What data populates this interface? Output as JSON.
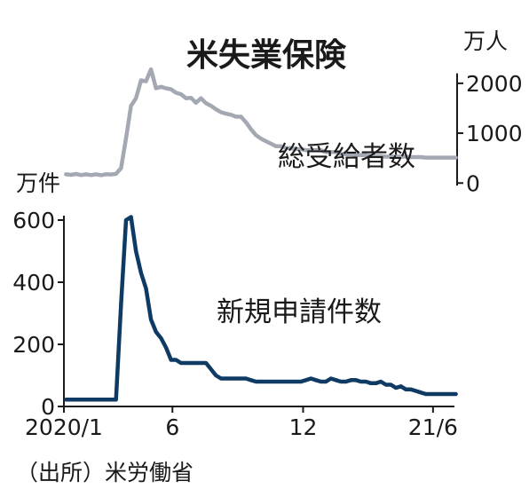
{
  "title": "米失業保険",
  "source": "（出所）米労働省",
  "colors": {
    "total": "#a4a8b3",
    "new": "#0e3a63",
    "axis": "#1a1a1a",
    "text": "#1a1a1a"
  },
  "chart_data": {
    "type": "line",
    "title": "米失業保険",
    "x_start": "2020-01",
    "x_end": "2021-07",
    "x_ticks": [
      {
        "label": "2020/1",
        "date": "2020-01"
      },
      {
        "label": "6",
        "date": "2020-06"
      },
      {
        "label": "12",
        "date": "2020-12"
      },
      {
        "label": "21/6",
        "date": "2021-06"
      }
    ],
    "y_left": {
      "unit": "万件",
      "range": [
        0,
        700
      ],
      "ticks": [
        0,
        200,
        400,
        600
      ]
    },
    "y_right": {
      "unit": "万人",
      "range": [
        -2700,
        2300
      ],
      "ticks": [
        0,
        1000,
        2000
      ]
    },
    "series": [
      {
        "name": "総受給者数",
        "axis": "right",
        "color": "#a4a8b3",
        "x": [
          "2020-01-04",
          "2020-01-11",
          "2020-01-18",
          "2020-01-25",
          "2020-02-01",
          "2020-02-08",
          "2020-02-15",
          "2020-02-22",
          "2020-02-29",
          "2020-03-07",
          "2020-03-14",
          "2020-03-21",
          "2020-03-28",
          "2020-04-04",
          "2020-04-11",
          "2020-04-18",
          "2020-04-25",
          "2020-05-02",
          "2020-05-09",
          "2020-05-16",
          "2020-05-23",
          "2020-05-30",
          "2020-06-06",
          "2020-06-13",
          "2020-06-20",
          "2020-06-27",
          "2020-07-04",
          "2020-07-11",
          "2020-07-18",
          "2020-07-25",
          "2020-08-01",
          "2020-08-08",
          "2020-08-15",
          "2020-08-22",
          "2020-08-29",
          "2020-09-05",
          "2020-09-12",
          "2020-09-19",
          "2020-09-26",
          "2020-10-03",
          "2020-10-10",
          "2020-10-17",
          "2020-10-24",
          "2020-10-31",
          "2020-11-07",
          "2020-11-14",
          "2020-11-21",
          "2020-11-28",
          "2020-12-05",
          "2020-12-12",
          "2020-12-19",
          "2020-12-26",
          "2021-01-02",
          "2021-01-09",
          "2021-01-16",
          "2021-01-23",
          "2021-01-30",
          "2021-02-06",
          "2021-02-13",
          "2021-02-20",
          "2021-02-27",
          "2021-03-06",
          "2021-03-13",
          "2021-03-20",
          "2021-03-27",
          "2021-04-03",
          "2021-04-10",
          "2021-04-17",
          "2021-04-24",
          "2021-05-01",
          "2021-05-08",
          "2021-05-15",
          "2021-05-22",
          "2021-05-29",
          "2021-06-05",
          "2021-06-12",
          "2021-06-19",
          "2021-06-26",
          "2021-07-03"
        ],
        "values": [
          175,
          165,
          182,
          160,
          176,
          160,
          175,
          158,
          178,
          172,
          185,
          300,
          900,
          1550,
          1700,
          2060,
          2040,
          2280,
          1900,
          1930,
          1900,
          1880,
          1810,
          1780,
          1700,
          1710,
          1610,
          1700,
          1600,
          1550,
          1480,
          1420,
          1390,
          1370,
          1330,
          1330,
          1220,
          1080,
          960,
          890,
          840,
          790,
          740,
          740,
          700,
          700,
          680,
          680,
          660,
          660,
          660,
          660,
          620,
          620,
          620,
          580,
          580,
          580,
          560,
          560,
          560,
          540,
          540,
          540,
          530,
          530,
          530,
          530,
          530,
          520,
          520,
          520,
          510,
          510,
          510,
          510,
          510,
          510,
          510
        ]
      },
      {
        "name": "新規申請件数",
        "axis": "left",
        "color": "#0e3a63",
        "x": [
          "2020-01-04",
          "2020-01-11",
          "2020-01-18",
          "2020-01-25",
          "2020-02-01",
          "2020-02-08",
          "2020-02-15",
          "2020-02-22",
          "2020-02-29",
          "2020-03-07",
          "2020-03-14",
          "2020-03-21",
          "2020-03-28",
          "2020-04-04",
          "2020-04-11",
          "2020-04-18",
          "2020-04-25",
          "2020-05-02",
          "2020-05-09",
          "2020-05-16",
          "2020-05-23",
          "2020-05-30",
          "2020-06-06",
          "2020-06-13",
          "2020-06-20",
          "2020-06-27",
          "2020-07-04",
          "2020-07-11",
          "2020-07-18",
          "2020-07-25",
          "2020-08-01",
          "2020-08-08",
          "2020-08-15",
          "2020-08-22",
          "2020-08-29",
          "2020-09-05",
          "2020-09-12",
          "2020-09-19",
          "2020-09-26",
          "2020-10-03",
          "2020-10-10",
          "2020-10-17",
          "2020-10-24",
          "2020-10-31",
          "2020-11-07",
          "2020-11-14",
          "2020-11-21",
          "2020-11-28",
          "2020-12-05",
          "2020-12-12",
          "2020-12-19",
          "2020-12-26",
          "2021-01-02",
          "2021-01-09",
          "2021-01-16",
          "2021-01-23",
          "2021-01-30",
          "2021-02-06",
          "2021-02-13",
          "2021-02-20",
          "2021-02-27",
          "2021-03-06",
          "2021-03-13",
          "2021-03-20",
          "2021-03-27",
          "2021-04-03",
          "2021-04-10",
          "2021-04-17",
          "2021-04-24",
          "2021-05-01",
          "2021-05-08",
          "2021-05-15",
          "2021-05-22",
          "2021-05-29",
          "2021-06-05",
          "2021-06-12",
          "2021-06-19",
          "2021-06-26",
          "2021-07-03"
        ],
        "values": [
          22,
          22,
          22,
          22,
          22,
          22,
          22,
          22,
          22,
          22,
          22,
          330,
          600,
          610,
          500,
          430,
          380,
          280,
          240,
          220,
          190,
          150,
          150,
          140,
          140,
          140,
          140,
          140,
          140,
          120,
          100,
          90,
          90,
          90,
          90,
          90,
          90,
          85,
          80,
          80,
          80,
          80,
          80,
          80,
          80,
          80,
          80,
          80,
          85,
          90,
          85,
          80,
          80,
          90,
          85,
          80,
          80,
          85,
          85,
          80,
          80,
          75,
          75,
          80,
          70,
          70,
          60,
          65,
          55,
          55,
          50,
          45,
          40,
          40,
          40,
          40,
          40,
          40,
          40
        ]
      }
    ]
  }
}
